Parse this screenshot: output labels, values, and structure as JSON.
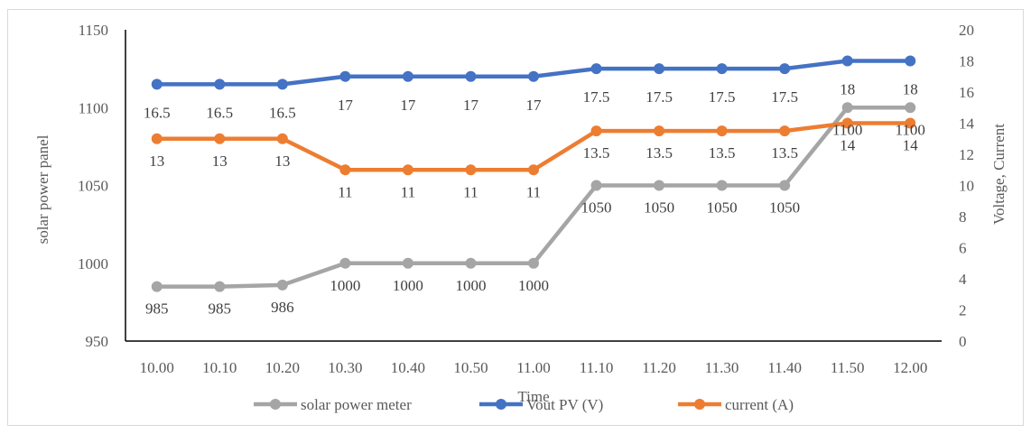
{
  "chart_data": {
    "type": "line",
    "xlabel": "Time",
    "ylabel_left": "solar power panel",
    "ylabel_right": "Voltage, Current",
    "categories": [
      "10.00",
      "10.10",
      "10.20",
      "10.30",
      "10.40",
      "10.50",
      "11.00",
      "11.10",
      "11.20",
      "11.30",
      "11.40",
      "11.50",
      "12.00"
    ],
    "ylim_left": [
      950,
      1150
    ],
    "yticks_left": [
      950,
      1000,
      1050,
      1100,
      1150
    ],
    "ylim_right": [
      0,
      20
    ],
    "yticks_right": [
      0,
      2,
      4,
      6,
      8,
      10,
      12,
      14,
      16,
      18,
      20
    ],
    "grid": false,
    "legend_position": "bottom",
    "series": [
      {
        "name": "solar power meter",
        "axis": "left",
        "color": "#a5a5a5",
        "values": [
          985,
          985,
          986,
          1000,
          1000,
          1000,
          1000,
          1050,
          1050,
          1050,
          1050,
          1100,
          1100
        ]
      },
      {
        "name": "Vout PV  (V)",
        "axis": "right",
        "color": "#4472c4",
        "values": [
          16.5,
          16.5,
          16.5,
          17,
          17,
          17,
          17,
          17.5,
          17.5,
          17.5,
          17.5,
          18,
          18
        ]
      },
      {
        "name": "current  (A)",
        "axis": "right",
        "color": "#ed7d31",
        "values": [
          13,
          13,
          13,
          11,
          11,
          11,
          11,
          13.5,
          13.5,
          13.5,
          13.5,
          14,
          14
        ]
      }
    ]
  }
}
